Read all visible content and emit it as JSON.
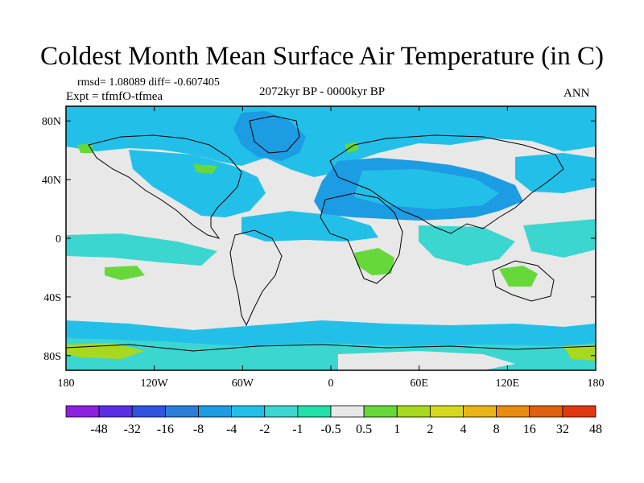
{
  "title": "Coldest Month Mean Surface Air Temperature (in C)",
  "stats": "rmsd= 1.08089 diff= -0.607405",
  "experiment": "Expt = tfmfO-tfmea",
  "period": "2072kyr BP - 0000kyr BP",
  "season": "ANN",
  "map": {
    "lon_ticks": [
      "180",
      "120W",
      "60W",
      "0",
      "60E",
      "120E",
      "180"
    ],
    "lat_ticks": [
      "80N",
      "40N",
      "0",
      "40S",
      "80S"
    ],
    "background_color": "#e8e8e8",
    "coast_color": "#000000"
  },
  "colorbar": {
    "colors": [
      "#8e20e0",
      "#5a2ee6",
      "#2e54e0",
      "#2a7ed8",
      "#1c9ce2",
      "#22c0e8",
      "#3cd6d0",
      "#22e0a8",
      "#e8e8e8",
      "#66d83a",
      "#a8d820",
      "#d6d820",
      "#e8b418",
      "#e88c10",
      "#e06010",
      "#e03810"
    ],
    "labels": [
      "-48",
      "-32",
      "-16",
      "-8",
      "-4",
      "-2",
      "-1",
      "-0.5",
      "0.5",
      "1",
      "2",
      "4",
      "8",
      "16",
      "32",
      "48"
    ]
  }
}
